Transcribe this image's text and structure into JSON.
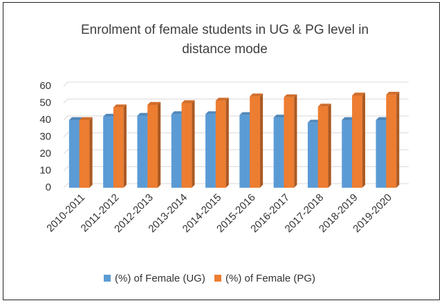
{
  "chart_data": {
    "type": "bar",
    "title": "Enrolment of female students in UG & PG level in distance mode",
    "categories": [
      "2010-2011",
      "2011-2012",
      "2012-2013",
      "2013-2014",
      "2014-2015",
      "2015-2016",
      "2016-2017",
      "2017-2018",
      "2018-2019",
      "2019-2020"
    ],
    "series": [
      {
        "name": "(%) of Female (UG)",
        "color": "#5b9bd5",
        "values": [
          40,
          42,
          42.5,
          43.5,
          43.5,
          43,
          41.5,
          38.5,
          40,
          40
        ]
      },
      {
        "name": "(%) of Female (PG)",
        "color": "#ed7d31",
        "values": [
          40,
          47.5,
          49,
          50,
          51.5,
          54,
          53.5,
          48,
          54.5,
          55
        ]
      }
    ],
    "ylim": [
      0,
      60
    ],
    "yticks": [
      0,
      10,
      20,
      30,
      40,
      50,
      60
    ],
    "grid": true,
    "legend": "bottom"
  }
}
